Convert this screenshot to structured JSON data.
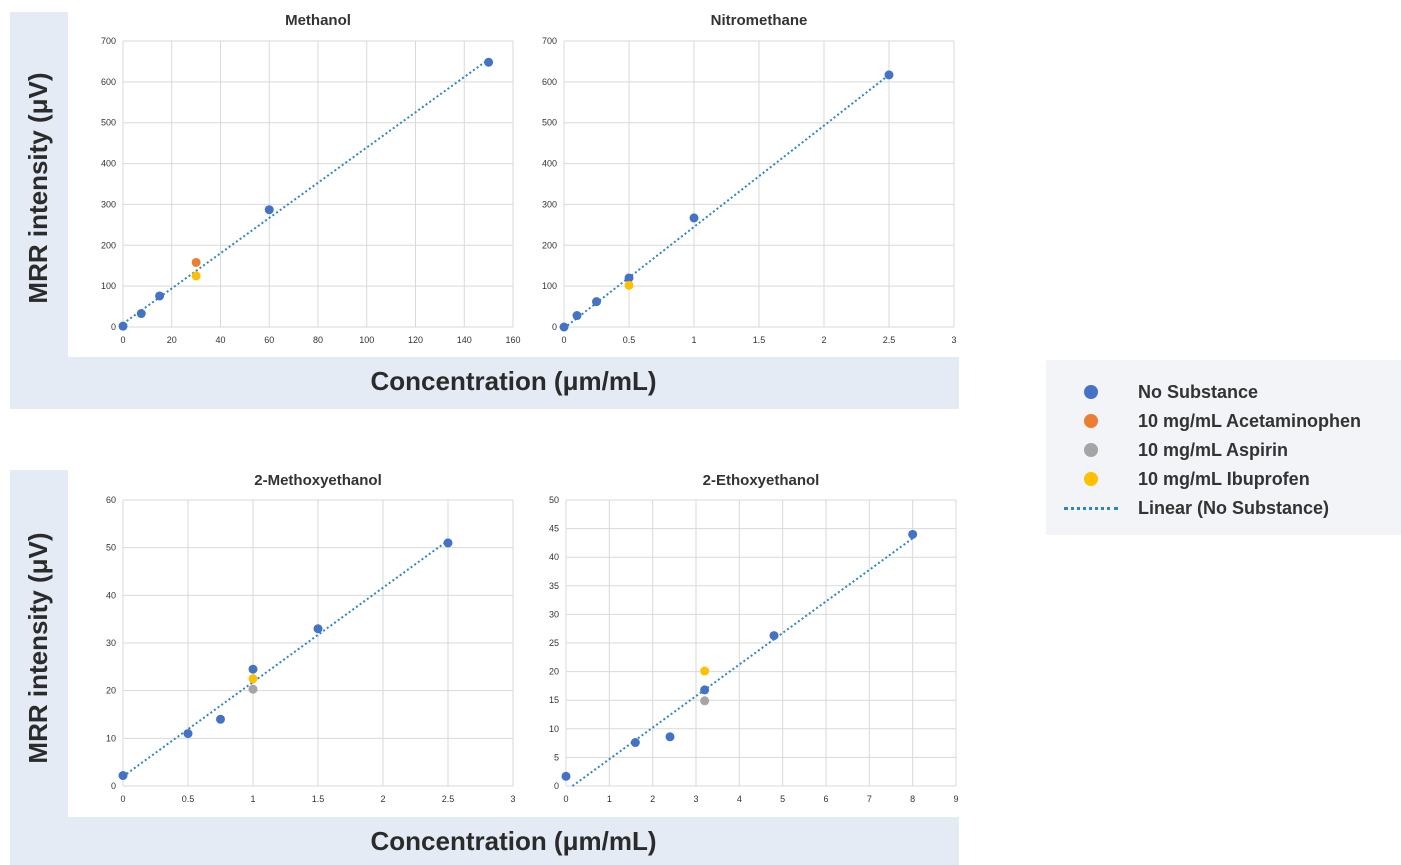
{
  "panels": [
    {
      "ylabel": "MRR intensity (μV)",
      "xlabel": "Concentration (μm/mL)"
    },
    {
      "ylabel": "MRR intensity (μV)",
      "xlabel": "Concentration (μm/mL)"
    }
  ],
  "legend": {
    "items": [
      {
        "label": "No Substance",
        "color": "#4472c4",
        "kind": "marker"
      },
      {
        "label": "10 mg/mL Acetaminophen",
        "color": "#ed7d31",
        "kind": "marker"
      },
      {
        "label": "10 mg/mL Aspirin",
        "color": "#a5a5a5",
        "kind": "marker"
      },
      {
        "label": "10 mg/mL Ibuprofen",
        "color": "#ffc000",
        "kind": "marker"
      },
      {
        "label": "Linear (No Substance)",
        "color": "#2e86c1",
        "kind": "line"
      }
    ]
  },
  "chart_data": [
    {
      "type": "scatter",
      "title": "Methanol",
      "xlim": [
        0,
        160
      ],
      "xticks": [
        0,
        20,
        40,
        60,
        80,
        100,
        120,
        140,
        160
      ],
      "ylim": [
        0,
        700
      ],
      "yticks": [
        0,
        100,
        200,
        300,
        400,
        500,
        600,
        700
      ],
      "grid": true,
      "series": [
        {
          "name": "No Substance",
          "color": "#4472c4",
          "points": [
            [
              0,
              2
            ],
            [
              7.5,
              33
            ],
            [
              15,
              76
            ],
            [
              60,
              287
            ],
            [
              150,
              648
            ]
          ]
        },
        {
          "name": "10 mg/mL Acetaminophen",
          "color": "#ed7d31",
          "points": [
            [
              30,
              158
            ]
          ]
        },
        {
          "name": "10 mg/mL Aspirin",
          "color": "#a5a5a5",
          "points": []
        },
        {
          "name": "10 mg/mL Ibuprofen",
          "color": "#ffc000",
          "points": [
            [
              30,
              125
            ]
          ]
        }
      ],
      "trendline": {
        "name": "Linear (No Substance)",
        "color": "#2e86c1",
        "x": [
          0,
          150
        ],
        "y": [
          8,
          655
        ]
      }
    },
    {
      "type": "scatter",
      "title": "Nitromethane",
      "xlim": [
        0,
        3
      ],
      "xticks": [
        0,
        0.5,
        1,
        1.5,
        2,
        2.5,
        3
      ],
      "ylim": [
        0,
        700
      ],
      "yticks": [
        0,
        100,
        200,
        300,
        400,
        500,
        600,
        700
      ],
      "grid": true,
      "series": [
        {
          "name": "No Substance",
          "color": "#4472c4",
          "points": [
            [
              0,
              0
            ],
            [
              0.1,
              28
            ],
            [
              0.25,
              62
            ],
            [
              0.5,
              120
            ],
            [
              1,
              267
            ],
            [
              2.5,
              617
            ]
          ]
        },
        {
          "name": "10 mg/mL Acetaminophen",
          "color": "#ed7d31",
          "points": []
        },
        {
          "name": "10 mg/mL Aspirin",
          "color": "#a5a5a5",
          "points": []
        },
        {
          "name": "10 mg/mL Ibuprofen",
          "color": "#ffc000",
          "points": [
            [
              0.5,
              102
            ]
          ]
        }
      ],
      "trendline": {
        "name": "Linear (No Substance)",
        "color": "#2e86c1",
        "x": [
          0,
          2.5
        ],
        "y": [
          -3,
          617
        ]
      }
    },
    {
      "type": "scatter",
      "title": "2-Methoxyethanol",
      "xlim": [
        0,
        3
      ],
      "xticks": [
        0,
        0.5,
        1,
        1.5,
        2,
        2.5,
        3
      ],
      "ylim": [
        0,
        60
      ],
      "yticks": [
        0,
        10,
        20,
        30,
        40,
        50,
        60
      ],
      "grid": true,
      "series": [
        {
          "name": "No Substance",
          "color": "#4472c4",
          "points": [
            [
              0,
              2.2
            ],
            [
              0.5,
              11
            ],
            [
              0.75,
              14
            ],
            [
              1,
              24.5
            ],
            [
              1.5,
              33
            ],
            [
              2.5,
              51
            ]
          ]
        },
        {
          "name": "10 mg/mL Acetaminophen",
          "color": "#ed7d31",
          "points": []
        },
        {
          "name": "10 mg/mL Aspirin",
          "color": "#a5a5a5",
          "points": [
            [
              1,
              20.3
            ]
          ]
        },
        {
          "name": "10 mg/mL Ibuprofen",
          "color": "#ffc000",
          "points": [
            [
              1,
              22.5
            ]
          ]
        }
      ],
      "trendline": {
        "name": "Linear (No Substance)",
        "color": "#2e86c1",
        "x": [
          0,
          2.5
        ],
        "y": [
          2,
          51.5
        ]
      }
    },
    {
      "type": "scatter",
      "title": "2-Ethoxyethanol",
      "xlim": [
        0,
        9
      ],
      "xticks": [
        0,
        1,
        2,
        3,
        4,
        5,
        6,
        7,
        8,
        9
      ],
      "ylim": [
        0,
        50
      ],
      "yticks": [
        0,
        5,
        10,
        15,
        20,
        25,
        30,
        35,
        40,
        45,
        50
      ],
      "grid": true,
      "series": [
        {
          "name": "No Substance",
          "color": "#4472c4",
          "points": [
            [
              0,
              1.7
            ],
            [
              1.6,
              7.6
            ],
            [
              2.4,
              8.6
            ],
            [
              3.2,
              16.8
            ],
            [
              4.8,
              26.3
            ],
            [
              8,
              44
            ]
          ]
        },
        {
          "name": "10 mg/mL Acetaminophen",
          "color": "#ed7d31",
          "points": []
        },
        {
          "name": "10 mg/mL Aspirin",
          "color": "#a5a5a5",
          "points": [
            [
              3.2,
              14.9
            ]
          ]
        },
        {
          "name": "10 mg/mL Ibuprofen",
          "color": "#ffc000",
          "points": [
            [
              3.2,
              20.1
            ]
          ]
        }
      ],
      "trendline": {
        "name": "Linear (No Substance)",
        "color": "#2e86c1",
        "x": [
          0.15,
          8
        ],
        "y": [
          0,
          43.3
        ]
      }
    }
  ]
}
